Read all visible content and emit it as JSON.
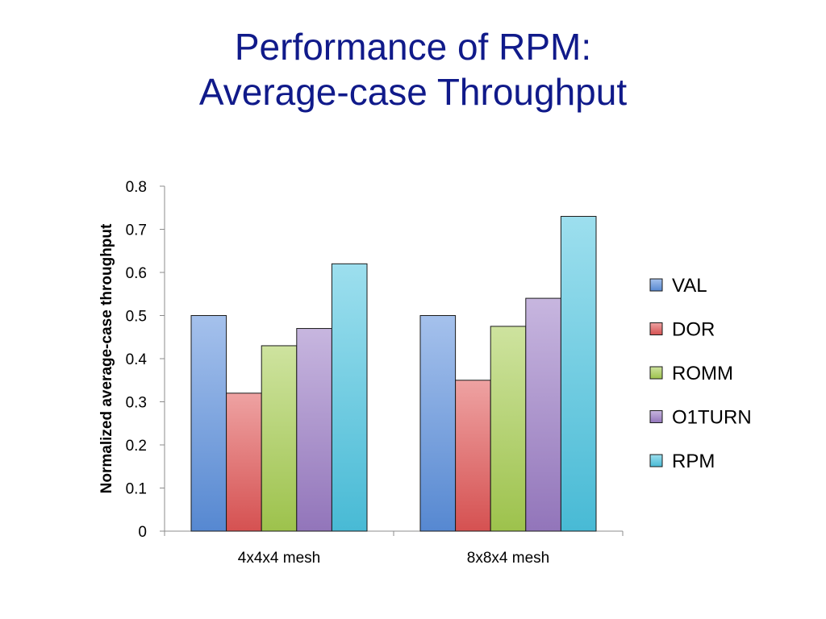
{
  "title": {
    "line1": "Performance of RPM:",
    "line2": "Average-case Throughput"
  },
  "colors": {
    "title": "#101a8a",
    "VAL": "#5b8fdc",
    "DOR": "#e05555",
    "ROMM": "#a5cc50",
    "O1TURN": "#9a7bc4",
    "RPM": "#4cc4e0"
  },
  "chart_data": {
    "type": "bar",
    "title": "",
    "xlabel": "",
    "ylabel": "Normalized average-case throughput",
    "ylim": [
      0,
      0.8
    ],
    "yticks": [
      "0",
      "0.1",
      "0.2",
      "0.3",
      "0.4",
      "0.5",
      "0.6",
      "0.7",
      "0.8"
    ],
    "categories": [
      "4x4x4 mesh",
      "8x8x4 mesh"
    ],
    "series": [
      {
        "name": "VAL",
        "values": [
          0.5,
          0.5
        ]
      },
      {
        "name": "DOR",
        "values": [
          0.32,
          0.35
        ]
      },
      {
        "name": "ROMM",
        "values": [
          0.43,
          0.475
        ]
      },
      {
        "name": "O1TURN",
        "values": [
          0.47,
          0.54
        ]
      },
      {
        "name": "RPM",
        "values": [
          0.62,
          0.73
        ]
      }
    ],
    "legend": "right",
    "grid": false
  }
}
